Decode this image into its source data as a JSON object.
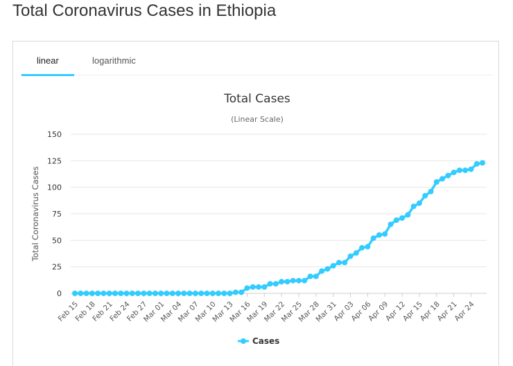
{
  "page": {
    "title": "Total Coronavirus Cases in Ethiopia"
  },
  "tabs": [
    {
      "label": "linear",
      "active": true
    },
    {
      "label": "logarithmic",
      "active": false
    }
  ],
  "colors": {
    "accent": "#33ccff",
    "series": "#33ccff",
    "grid": "#e6e6e6"
  },
  "chart_data": {
    "type": "line",
    "title": "Total Cases",
    "subtitle": "(Linear Scale)",
    "ylabel": "Total Coronavirus Cases",
    "xlabel": "",
    "ylim": [
      0,
      150
    ],
    "yticks": [
      0,
      25,
      50,
      75,
      100,
      125,
      150
    ],
    "xtick_labels": [
      "Feb 15",
      "Feb 18",
      "Feb 21",
      "Feb 24",
      "Feb 27",
      "Mar 01",
      "Mar 04",
      "Mar 07",
      "Mar 10",
      "Mar 13",
      "Mar 16",
      "Mar 19",
      "Mar 22",
      "Mar 25",
      "Mar 28",
      "Mar 31",
      "Apr 03",
      "Apr 06",
      "Apr 09",
      "Apr 12",
      "Apr 15",
      "Apr 18",
      "Apr 21",
      "Apr 24"
    ],
    "series": [
      {
        "name": "Cases",
        "start_date": "Feb 15",
        "values": [
          0,
          0,
          0,
          0,
          0,
          0,
          0,
          0,
          0,
          0,
          0,
          0,
          0,
          0,
          0,
          0,
          0,
          0,
          0,
          0,
          0,
          0,
          0,
          0,
          0,
          0,
          0,
          0,
          1,
          1,
          5,
          6,
          6,
          6,
          9,
          9,
          11,
          11,
          12,
          12,
          12,
          16,
          16,
          21,
          23,
          26,
          29,
          29,
          35,
          38,
          43,
          44,
          52,
          55,
          56,
          65,
          69,
          71,
          74,
          82,
          85,
          92,
          96,
          105,
          108,
          111,
          114,
          116,
          116,
          117,
          122,
          123
        ]
      }
    ],
    "legend": {
      "position": "bottom-center",
      "label": "Cases"
    },
    "grid": true
  }
}
